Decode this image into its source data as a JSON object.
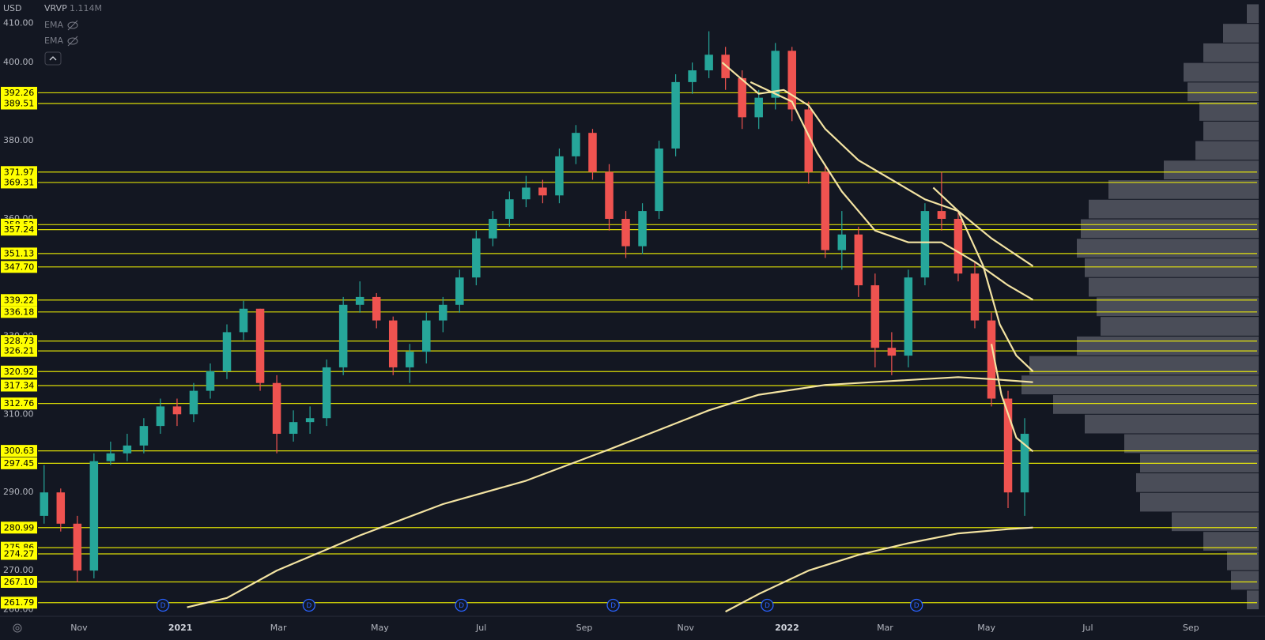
{
  "chart_data": {
    "type": "candlestick",
    "currency": "USD",
    "indicator": {
      "name": "VRVP",
      "volume": {
        "value": 1114000,
        "label": "1.114M"
      }
    },
    "studies": [
      "EMA",
      "EMA"
    ],
    "xlim": [
      6.3,
      744.6
    ],
    "ylim": [
      258.3,
      416
    ],
    "grid": false,
    "xticks": [
      {
        "value": 31,
        "label": "Nov"
      },
      {
        "value": 92,
        "label": "2021"
      },
      {
        "value": 151,
        "label": "Mar"
      },
      {
        "value": 212,
        "label": "May"
      },
      {
        "value": 273,
        "label": "Jul"
      },
      {
        "value": 335,
        "label": "Sep"
      },
      {
        "value": 396,
        "label": "Nov"
      },
      {
        "value": 457,
        "label": "2022"
      },
      {
        "value": 516,
        "label": "Mar"
      },
      {
        "value": 577,
        "label": "May"
      },
      {
        "value": 638,
        "label": "Jul"
      },
      {
        "value": 700,
        "label": "Sep"
      }
    ],
    "yticks": [
      {
        "value": 410,
        "label": "410.00"
      },
      {
        "value": 400,
        "label": "400.00"
      },
      {
        "value": 380,
        "label": "380.00"
      },
      {
        "value": 360,
        "label": "360.00"
      },
      {
        "value": 330,
        "label": "330.00"
      },
      {
        "value": 310,
        "label": "310.00"
      },
      {
        "value": 290,
        "label": "290.00"
      },
      {
        "value": 270,
        "label": "270.00"
      },
      {
        "value": 260,
        "label": "260.00"
      }
    ],
    "up_color": "#26a69a",
    "down_color": "#ef5350",
    "candles": {
      "x": [
        10,
        20,
        30,
        40,
        50,
        60,
        70,
        80,
        90,
        100,
        110,
        120,
        130,
        140,
        150,
        160,
        170,
        180,
        190,
        200,
        210,
        220,
        230,
        240,
        250,
        260,
        270,
        280,
        290,
        300,
        310,
        320,
        330,
        340,
        350,
        360,
        370,
        380,
        390,
        400,
        410,
        420,
        430,
        440,
        450,
        460,
        470,
        480,
        490,
        500,
        510,
        520,
        530,
        540,
        550,
        560,
        570,
        580,
        590,
        600
      ],
      "open": [
        284,
        290,
        282,
        270,
        298,
        300,
        302,
        307,
        312,
        310,
        316,
        321,
        331,
        337,
        318,
        305,
        308,
        309,
        322,
        338,
        340,
        334,
        322,
        326,
        334,
        338,
        345,
        355,
        360,
        365,
        368,
        366,
        376,
        382,
        372,
        360,
        353,
        362,
        378,
        395,
        398,
        402,
        396,
        386,
        391,
        403,
        388,
        372,
        352,
        356,
        343,
        327,
        325,
        345,
        362,
        360,
        346,
        334,
        314,
        290
      ],
      "high": [
        297,
        291,
        284,
        300,
        303,
        305,
        309,
        314,
        314,
        318,
        323,
        333,
        339,
        337,
        320,
        311,
        312,
        324,
        340,
        344,
        341,
        335,
        328,
        336,
        340,
        347,
        357,
        362,
        367,
        371,
        370,
        378,
        384,
        383,
        374,
        362,
        364,
        380,
        397,
        400,
        408,
        404,
        398,
        393,
        405,
        404,
        390,
        374,
        362,
        358,
        346,
        331,
        347,
        364,
        372,
        362,
        349,
        336,
        316,
        309
      ],
      "low": [
        282,
        280,
        267,
        268,
        297,
        298,
        300,
        305,
        307,
        308,
        314,
        319,
        329,
        316,
        300,
        303,
        305,
        307,
        320,
        336,
        332,
        320,
        318,
        323,
        331,
        336,
        343,
        353,
        358,
        363,
        364,
        364,
        374,
        370,
        357,
        350,
        351,
        360,
        376,
        392,
        396,
        393,
        383,
        383,
        388,
        385,
        369,
        350,
        347,
        340,
        322,
        320,
        322,
        343,
        357,
        344,
        332,
        312,
        286,
        284
      ],
      "close": [
        290,
        282,
        270,
        298,
        300,
        302,
        307,
        312,
        310,
        316,
        321,
        331,
        337,
        318,
        305,
        308,
        309,
        322,
        338,
        340,
        334,
        322,
        326,
        334,
        338,
        345,
        355,
        360,
        365,
        368,
        366,
        376,
        382,
        372,
        360,
        353,
        362,
        378,
        395,
        398,
        402,
        396,
        386,
        391,
        403,
        388,
        372,
        352,
        356,
        343,
        327,
        325,
        345,
        362,
        360,
        346,
        334,
        314,
        290,
        305
      ]
    },
    "ma_color": "#f3e3a2",
    "moving_averages": [
      {
        "x": [
          96,
          120,
          150,
          200,
          250,
          300,
          350,
          380,
          410,
          440,
          480,
          520,
          560,
          580,
          605
        ],
        "values": [
          260.6,
          263,
          270,
          279,
          287,
          293,
          301,
          306,
          311,
          315,
          317.5,
          318.5,
          319.5,
          319,
          318.2
        ]
      },
      {
        "x": [
          420,
          440,
          470,
          500,
          530,
          560,
          590,
          605
        ],
        "values": [
          259.5,
          264,
          270,
          274,
          277,
          279.5,
          280.6,
          281
        ]
      },
      {
        "x": [
          418,
          440,
          455,
          470,
          480,
          500,
          520,
          540,
          560,
          580,
          605
        ],
        "values": [
          400,
          392,
          393,
          389,
          383,
          375,
          370,
          365,
          362,
          355,
          347.9
        ]
      },
      {
        "x": [
          435,
          460,
          475,
          490,
          510,
          530,
          550,
          570,
          590,
          605
        ],
        "values": [
          395,
          390,
          377,
          367,
          357,
          354,
          354,
          349,
          343,
          339.3
        ]
      },
      {
        "x": [
          545,
          560,
          575,
          585,
          595,
          605
        ],
        "values": [
          368,
          362,
          348,
          333,
          325,
          321
        ]
      },
      {
        "x": [
          580,
          586,
          595,
          605
        ],
        "values": [
          328,
          315,
          304,
          300.5
        ]
      }
    ],
    "level_color": "#ffff00",
    "levels": [
      392.26,
      389.51,
      371.97,
      369.31,
      358.52,
      357.24,
      351.13,
      {
        "value": 347.7,
        "label": "347.70"
      },
      339.22,
      336.18,
      328.73,
      326.21,
      320.92,
      317.34,
      312.76,
      300.63,
      297.45,
      280.99,
      275.86,
      274.27,
      {
        "value": 267.1,
        "label": "267.10"
      },
      261.79
    ],
    "profile_color": "#5d606b",
    "volume_profile": {
      "bins": [
        260,
        265,
        270,
        275,
        280,
        285,
        290,
        295,
        300,
        305,
        310,
        315,
        320,
        325,
        330,
        335,
        340,
        345,
        350,
        355,
        360,
        365,
        370,
        375,
        380,
        385,
        390,
        395,
        400,
        405,
        410,
        415
      ],
      "counts": [
        15,
        35,
        40,
        70,
        110,
        150,
        155,
        150,
        170,
        220,
        260,
        300,
        290,
        230,
        200,
        205,
        215,
        220,
        230,
        225,
        215,
        190,
        120,
        80,
        70,
        75,
        90,
        95,
        70,
        45,
        15
      ]
    },
    "events": [
      {
        "x": 81.5,
        "label": "D"
      },
      {
        "x": 169.4,
        "label": "D"
      },
      {
        "x": 261.1,
        "label": "D"
      },
      {
        "x": 352.4,
        "label": "D"
      },
      {
        "x": 445.1,
        "label": "D"
      },
      {
        "x": 534.9,
        "label": "D"
      }
    ]
  }
}
